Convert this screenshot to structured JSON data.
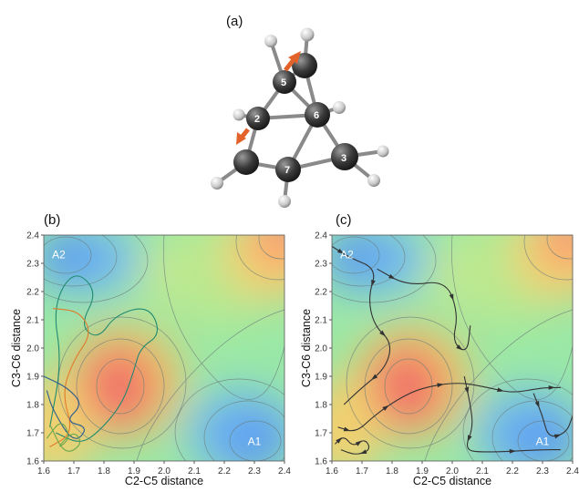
{
  "figure": {
    "panel_labels": [
      "(a)",
      "(b)",
      "(c)"
    ],
    "atom_numbers": [
      "2",
      "3",
      "5",
      "6",
      "7"
    ],
    "colors": {
      "surface_low": "#5b9bf0",
      "surface_mid": "#8fe3a0",
      "surface_high": "#f06a6a",
      "contour": "#6a7a7a",
      "arrow": "#e2622a",
      "trajectory_dark": "#333333"
    }
  },
  "chart_data": [
    {
      "type": "contour",
      "panel": "(b)",
      "xlabel": "C2-C5 distance",
      "ylabel": "C3-C6 distance",
      "xlim": [
        1.6,
        2.4
      ],
      "ylim": [
        1.6,
        2.4
      ],
      "xticks": [
        "1.6",
        "1.7",
        "1.8",
        "1.9",
        "2.0",
        "2.1",
        "2.2",
        "2.3",
        "2.4"
      ],
      "yticks": [
        "1.6",
        "1.7",
        "1.8",
        "1.9",
        "2.0",
        "2.1",
        "2.2",
        "2.3",
        "2.4"
      ],
      "annotations": [
        {
          "text": "A2",
          "x": 1.65,
          "y": 2.33
        },
        {
          "text": "A1",
          "x": 2.3,
          "y": 1.67
        }
      ],
      "trajectories": [
        {
          "color": "#1f8a70",
          "points": [
            [
              1.62,
              1.72
            ],
            [
              1.66,
              1.95
            ],
            [
              1.63,
              2.15
            ],
            [
              1.7,
              2.28
            ],
            [
              1.78,
              2.2
            ],
            [
              1.72,
              2.08
            ],
            [
              1.78,
              2.03
            ],
            [
              1.84,
              2.12
            ],
            [
              1.95,
              2.15
            ],
            [
              1.99,
              2.05
            ],
            [
              1.92,
              2.0
            ],
            [
              1.9,
              1.92
            ],
            [
              1.86,
              1.8
            ],
            [
              1.78,
              1.7
            ],
            [
              1.72,
              1.66
            ],
            [
              1.64,
              1.7
            ]
          ]
        },
        {
          "color": "#e07b2a",
          "points": [
            [
              1.63,
              2.14
            ],
            [
              1.72,
              2.13
            ],
            [
              1.76,
              2.05
            ],
            [
              1.7,
              1.96
            ],
            [
              1.66,
              1.84
            ],
            [
              1.7,
              1.7
            ],
            [
              1.62,
              1.65
            ]
          ]
        },
        {
          "color": "#2a5d8f",
          "points": [
            [
              1.6,
              1.9
            ],
            [
              1.68,
              1.86
            ],
            [
              1.73,
              1.8
            ],
            [
              1.67,
              1.74
            ],
            [
              1.75,
              1.72
            ],
            [
              1.7,
              1.66
            ],
            [
              1.63,
              1.78
            ],
            [
              1.61,
              1.85
            ]
          ]
        },
        {
          "color": "#6aa84f",
          "points": [
            [
              1.61,
              1.68
            ],
            [
              1.66,
              1.75
            ],
            [
              1.69,
              1.68
            ],
            [
              1.64,
              1.64
            ],
            [
              1.7,
              1.71
            ],
            [
              1.73,
              1.66
            ],
            [
              1.67,
              1.62
            ],
            [
              1.62,
              1.73
            ]
          ]
        }
      ]
    },
    {
      "type": "contour",
      "panel": "(c)",
      "xlabel": "C2-C5 distance",
      "ylabel": "C3-C6 distance",
      "xlim": [
        1.6,
        2.4
      ],
      "ylim": [
        1.6,
        2.4
      ],
      "xticks": [
        "1.6",
        "1.7",
        "1.8",
        "1.9",
        "2.0",
        "2.1",
        "2.2",
        "2.3",
        "2.4"
      ],
      "yticks": [
        "1.6",
        "1.7",
        "1.8",
        "1.9",
        "2.0",
        "2.1",
        "2.2",
        "2.3",
        "2.4"
      ],
      "annotations": [
        {
          "text": "A2",
          "x": 1.65,
          "y": 2.33
        },
        {
          "text": "A1",
          "x": 2.3,
          "y": 1.67
        }
      ],
      "trajectories": [
        {
          "color": "#333333",
          "points": [
            [
              1.6,
              2.36
            ],
            [
              1.66,
              2.32
            ],
            [
              1.75,
              2.28
            ],
            [
              1.72,
              2.18
            ],
            [
              1.74,
              2.08
            ],
            [
              1.8,
              2.02
            ],
            [
              1.78,
              1.93
            ],
            [
              1.7,
              1.86
            ],
            [
              1.64,
              1.8
            ]
          ]
        },
        {
          "color": "#333333",
          "points": [
            [
              1.75,
              2.28
            ],
            [
              1.85,
              2.22
            ],
            [
              1.98,
              2.24
            ],
            [
              2.02,
              2.12
            ],
            [
              2.0,
              2.02
            ],
            [
              2.05,
              1.98
            ],
            [
              2.06,
              2.08
            ]
          ]
        },
        {
          "color": "#333333",
          "points": [
            [
              1.62,
              1.72
            ],
            [
              1.68,
              1.7
            ],
            [
              1.74,
              1.76
            ],
            [
              1.82,
              1.82
            ],
            [
              1.9,
              1.86
            ],
            [
              2.02,
              1.88
            ],
            [
              2.12,
              1.86
            ],
            [
              2.2,
              1.84
            ],
            [
              2.3,
              1.86
            ],
            [
              2.36,
              1.86
            ]
          ]
        },
        {
          "color": "#333333",
          "points": [
            [
              2.04,
              1.9
            ],
            [
              2.06,
              1.8
            ],
            [
              2.07,
              1.72
            ],
            [
              2.04,
              1.64
            ],
            [
              2.1,
              1.63
            ],
            [
              2.3,
              1.64
            ],
            [
              2.36,
              1.64
            ]
          ]
        },
        {
          "color": "#333333",
          "points": [
            [
              2.27,
              1.84
            ],
            [
              2.3,
              1.76
            ],
            [
              2.32,
              1.68
            ],
            [
              2.38,
              1.7
            ],
            [
              2.4,
              1.76
            ]
          ]
        },
        {
          "color": "#333333",
          "points": [
            [
              1.61,
              1.66
            ],
            [
              1.64,
              1.69
            ],
            [
              1.67,
              1.65
            ],
            [
              1.71,
              1.68
            ],
            [
              1.73,
              1.64
            ],
            [
              1.68,
              1.62
            ],
            [
              1.63,
              1.64
            ]
          ]
        }
      ]
    }
  ]
}
